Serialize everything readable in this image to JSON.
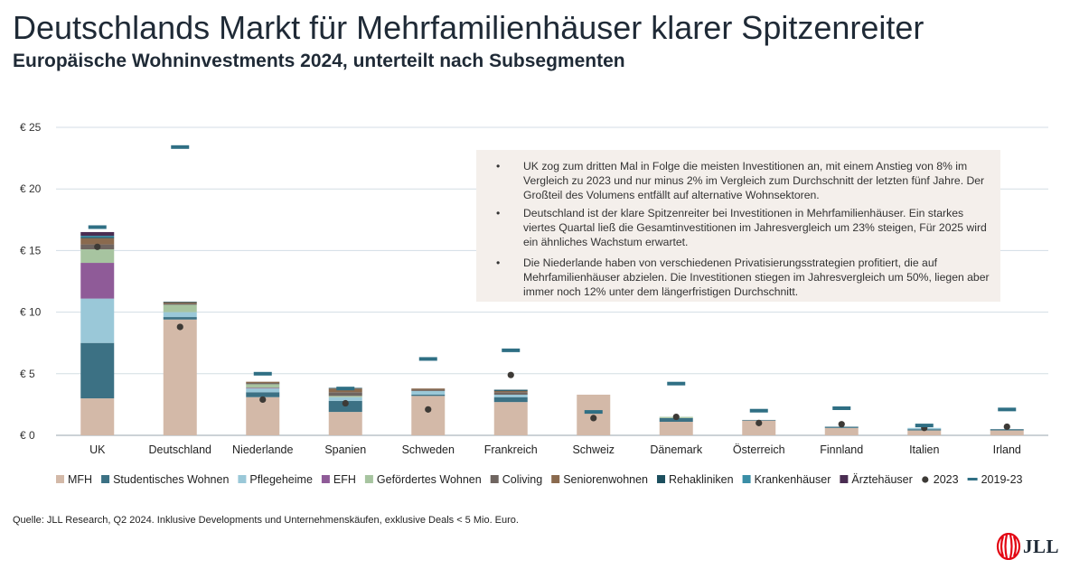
{
  "title": "Deutschlands Markt für Mehrfamilienhäuser klarer Spitzenreiter",
  "subtitle": "Europäische Wohninvestments 2024, unterteilt nach Subsegmenten",
  "notes": [
    "UK zog zum dritten Mal in Folge die meisten Investitionen an, mit einem Anstieg von 8% im Vergleich zu 2023 und nur minus 2% im Vergleich zum Durchschnitt der letzten fünf Jahre. Der Großteil des Volumens entfällt auf alternative Wohnsektoren.",
    "Deutschland ist der klare Spitzenreiter bei Investitionen in Mehrfamilienhäuser. Ein starkes viertes Quartal ließ die Gesamtinvestitionen im Jahresvergleich um 23% steigen, Für 2025 wird ein ähnliches Wachstum erwartet.",
    "Die Niederlande haben von verschiedenen Privatisierungsstrategien profitiert, die auf Mehrfamilienhäuser abzielen. Die Investitionen stiegen im Jahresvergleich um 50%, liegen aber immer noch 12% unter dem längerfristigen Durchschnitt."
  ],
  "bullet": "•",
  "source": "Quelle: JLL Research, Q2 2024. Inklusive Developments und Unternehmenskäufen, exklusive Deals < 5 Mio. Euro.",
  "logo": {
    "text": "JLL",
    "color": "#e30613"
  },
  "chart_data": {
    "type": "bar",
    "stacked": true,
    "categories": [
      "UK",
      "Deutschland",
      "Niederlande",
      "Spanien",
      "Schweden",
      "Frankreich",
      "Schweiz",
      "Dänemark",
      "Österreich",
      "Finnland",
      "Italien",
      "Irland"
    ],
    "y_tick_labels": [
      "€ 0",
      "€ 5",
      "€ 10",
      "€ 15",
      "€ 20",
      "€ 25"
    ],
    "ylim": [
      0,
      25
    ],
    "y_ticks": [
      0,
      5,
      10,
      15,
      20,
      25
    ],
    "grid": true,
    "legend_position": "bottom",
    "series": [
      {
        "name": "MFH",
        "color": "#d3b9a8",
        "values": [
          3.0,
          9.4,
          3.1,
          1.9,
          3.2,
          2.7,
          3.3,
          1.1,
          1.2,
          0.6,
          0.4,
          0.4
        ]
      },
      {
        "name": "Studentisches Wohnen",
        "color": "#3c7184",
        "values": [
          4.5,
          0.2,
          0.4,
          0.9,
          0.1,
          0.4,
          0.0,
          0.3,
          0.05,
          0.1,
          0.1,
          0.1
        ]
      },
      {
        "name": "Pflegeheime",
        "color": "#9ac8d8",
        "values": [
          3.6,
          0.4,
          0.3,
          0.3,
          0.3,
          0.2,
          0.0,
          0.0,
          0.0,
          0.0,
          0.1,
          0.0
        ]
      },
      {
        "name": "EFH",
        "color": "#8f5b98",
        "values": [
          2.9,
          0.0,
          0.05,
          0.0,
          0.0,
          0.0,
          0.0,
          0.0,
          0.0,
          0.0,
          0.0,
          0.0
        ]
      },
      {
        "name": "Gefördertes Wohnen",
        "color": "#a7c4a0",
        "values": [
          1.1,
          0.6,
          0.3,
          0.1,
          0.0,
          0.0,
          0.0,
          0.1,
          0.0,
          0.0,
          0.0,
          0.0
        ]
      },
      {
        "name": "Coliving",
        "color": "#6f6560",
        "values": [
          0.4,
          0.1,
          0.1,
          0.3,
          0.1,
          0.2,
          0.0,
          0.0,
          0.0,
          0.0,
          0.0,
          0.0
        ]
      },
      {
        "name": "Seniorenwohnen",
        "color": "#8a6a4e",
        "values": [
          0.5,
          0.1,
          0.1,
          0.3,
          0.1,
          0.1,
          0.0,
          0.0,
          0.0,
          0.0,
          0.0,
          0.0
        ]
      },
      {
        "name": "Rehakliniken",
        "color": "#1c4f5e",
        "values": [
          0.1,
          0.05,
          0.0,
          0.05,
          0.0,
          0.1,
          0.0,
          0.0,
          0.0,
          0.0,
          0.0,
          0.0
        ]
      },
      {
        "name": "Krankenhäuser",
        "color": "#3a8ea6",
        "values": [
          0.1,
          0.0,
          0.0,
          0.0,
          0.0,
          0.0,
          0.0,
          0.0,
          0.0,
          0.0,
          0.0,
          0.0
        ]
      },
      {
        "name": "Ärztehäuser",
        "color": "#4a2d52",
        "values": [
          0.3,
          0.0,
          0.0,
          0.0,
          0.0,
          0.0,
          0.0,
          0.0,
          0.0,
          0.0,
          0.0,
          0.0
        ]
      }
    ],
    "markers": [
      {
        "name": "2023",
        "kind": "dot",
        "color": "#3d3a36",
        "values": [
          15.3,
          8.8,
          2.9,
          2.6,
          2.1,
          4.9,
          1.4,
          1.5,
          1.0,
          0.9,
          0.6,
          0.7
        ]
      },
      {
        "name": "2019-23",
        "kind": "dash",
        "color": "#2f6f84",
        "values": [
          16.9,
          23.4,
          5.0,
          3.8,
          6.2,
          6.9,
          1.9,
          4.2,
          2.0,
          2.2,
          0.8,
          2.1
        ]
      }
    ]
  }
}
